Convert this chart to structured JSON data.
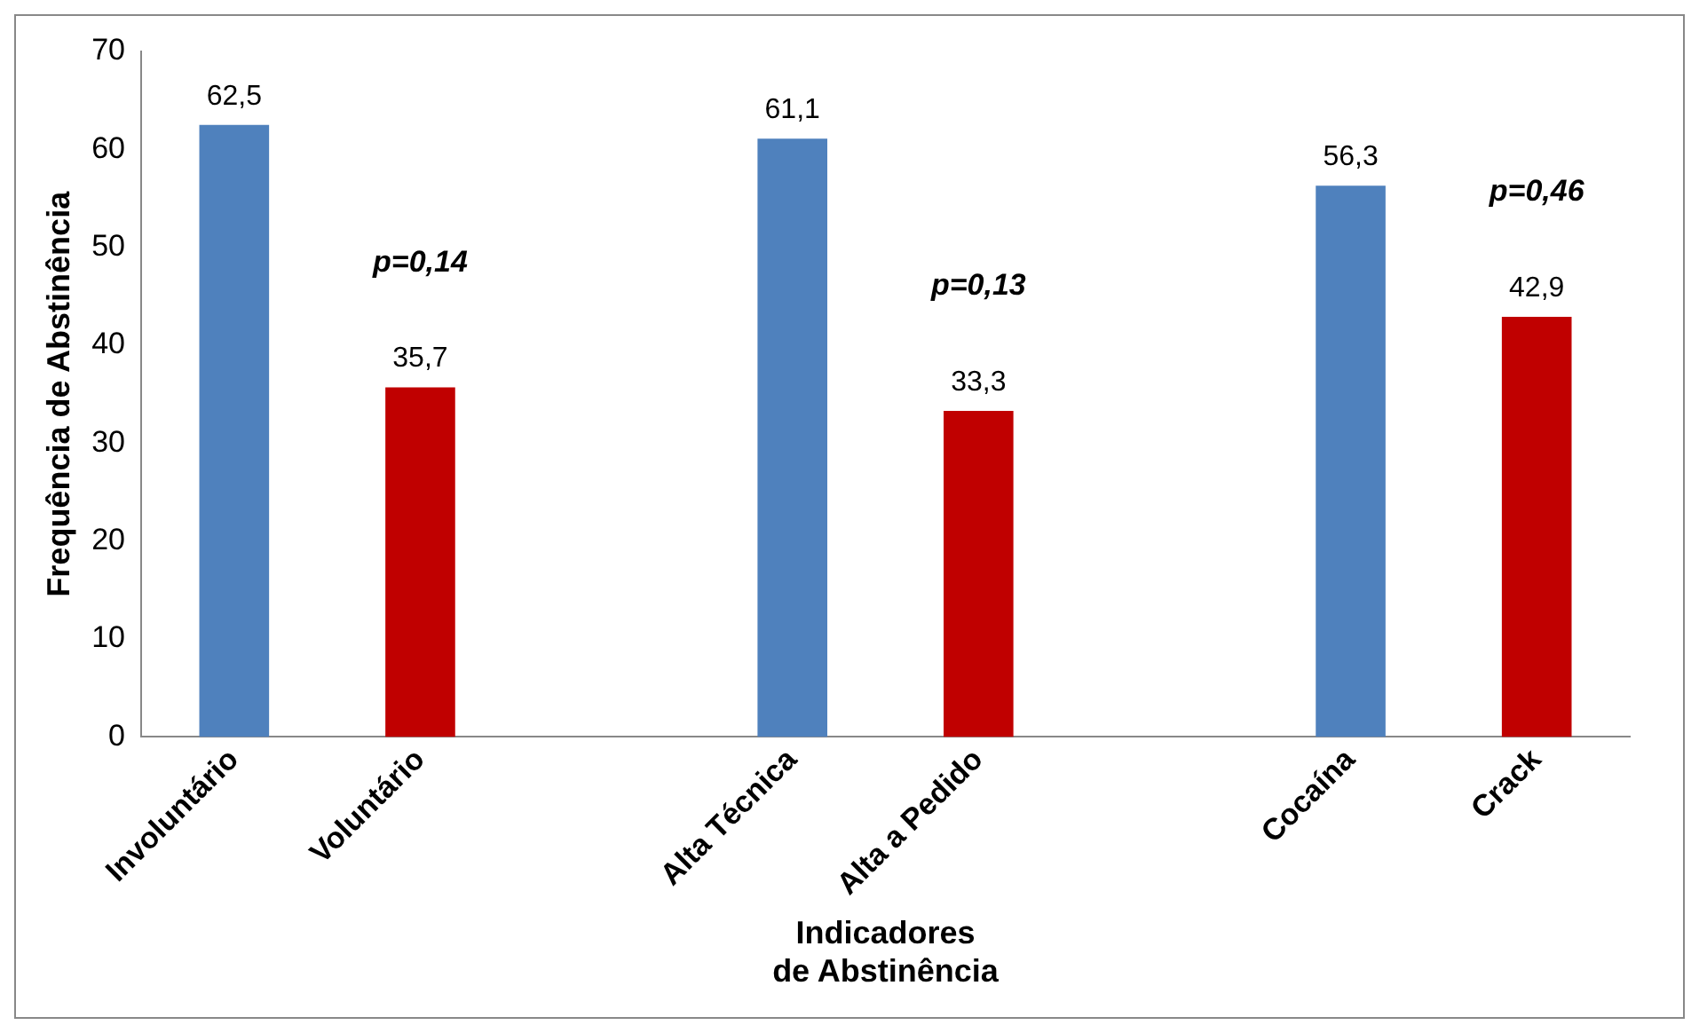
{
  "chart_data": {
    "type": "bar",
    "xlabel": "Indicadores\nde Abstinência",
    "ylabel": "Frequência de Abstinência",
    "categories": [
      "Involuntário",
      "Voluntário",
      null,
      "Alta Técnica",
      "Alta a Pedido",
      null,
      "Cocaína",
      "Crack"
    ],
    "values": [
      62.5,
      35.7,
      null,
      61.1,
      33.3,
      null,
      56.3,
      42.9
    ],
    "colors": [
      "#4f81bd",
      "#c00000",
      null,
      "#4f81bd",
      "#c00000",
      null,
      "#4f81bd",
      "#c00000"
    ],
    "value_labels": [
      "62,5",
      "35,7",
      null,
      "61,1",
      "33,3",
      null,
      "56,3",
      "42,9"
    ],
    "ylim": [
      0,
      70
    ],
    "yticks": [
      0,
      10,
      20,
      30,
      40,
      50,
      60,
      70
    ],
    "grid": false,
    "legend": false,
    "annotations": [
      "p=0,14",
      "p=0,13",
      "p=0,46"
    ]
  }
}
